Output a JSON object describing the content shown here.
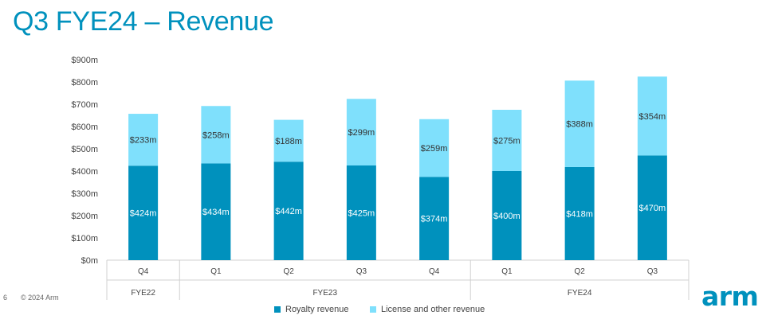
{
  "page": {
    "title": "Q3 FYE24 – Revenue",
    "page_number": "6",
    "copyright": "© 2024 Arm",
    "logo_text": "arm"
  },
  "colors": {
    "royalty": "#0091bd",
    "license": "#7fe0fc",
    "title": "#0091bd"
  },
  "chart_data": {
    "type": "bar",
    "stacked": true,
    "title": "",
    "xlabel": "",
    "ylabel": "",
    "ylim": [
      0,
      900
    ],
    "yticks": [
      "$0m",
      "$100m",
      "$200m",
      "$300m",
      "$400m",
      "$500m",
      "$600m",
      "$700m",
      "$800m",
      "$900m"
    ],
    "categories": [
      "Q4",
      "Q1",
      "Q2",
      "Q3",
      "Q4",
      "Q1",
      "Q2",
      "Q3"
    ],
    "groups": [
      {
        "label": "FYE22",
        "count": 1
      },
      {
        "label": "FYE23",
        "count": 4
      },
      {
        "label": "FYE24",
        "count": 3
      }
    ],
    "series": [
      {
        "name": "Royalty revenue",
        "values": [
          424,
          434,
          442,
          425,
          374,
          400,
          418,
          470
        ],
        "labels": [
          "$424m",
          "$434m",
          "$442m",
          "$425m",
          "$374m",
          "$400m",
          "$418m",
          "$470m"
        ]
      },
      {
        "name": "License and other revenue",
        "values": [
          233,
          258,
          188,
          299,
          259,
          275,
          388,
          354
        ],
        "labels": [
          "$233m",
          "$258m",
          "$188m",
          "$299m",
          "$259m",
          "$275m",
          "$388m",
          "$354m"
        ]
      }
    ],
    "grid": false,
    "legend": "bottom"
  }
}
